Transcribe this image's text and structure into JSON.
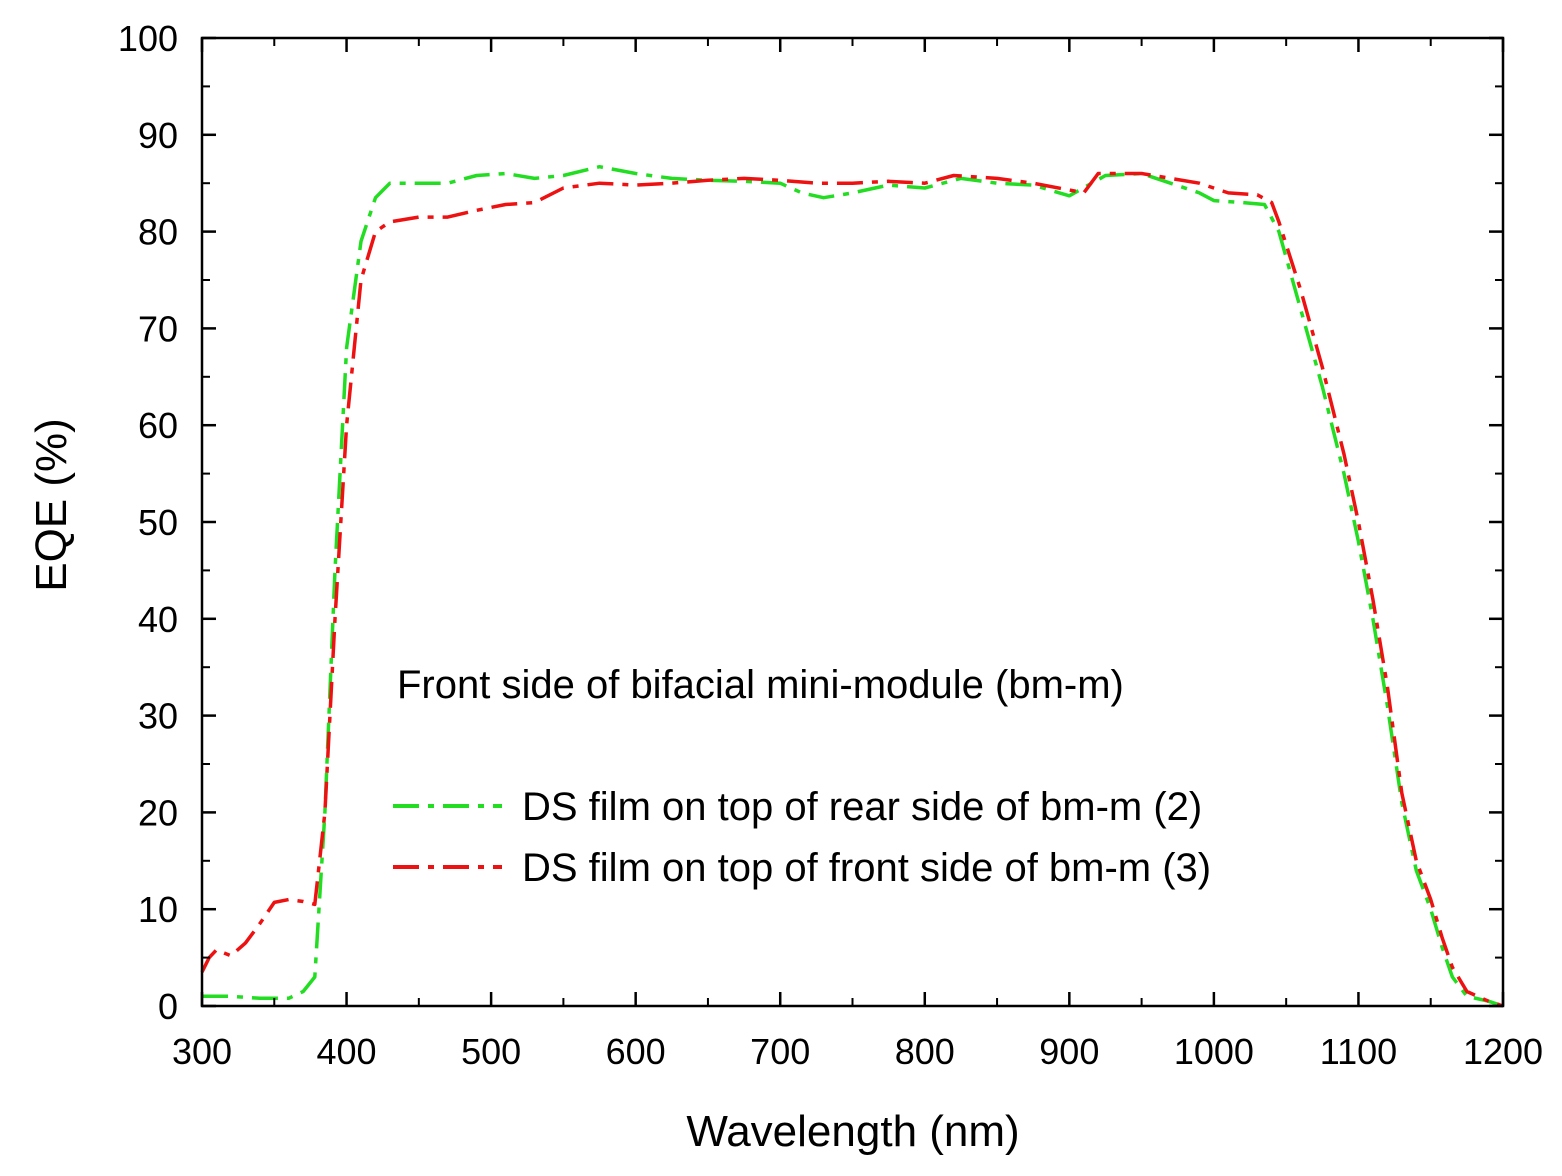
{
  "chart_data": {
    "type": "line",
    "title": "",
    "xlabel": "Wavelength (nm)",
    "ylabel": "EQE (%)",
    "xlim": [
      300,
      1200
    ],
    "ylim": [
      0,
      100
    ],
    "xticks": [
      300,
      400,
      500,
      600,
      700,
      800,
      900,
      1000,
      1100,
      1200
    ],
    "yticks": [
      0,
      10,
      20,
      30,
      40,
      50,
      60,
      70,
      80,
      90,
      100
    ],
    "grid": false,
    "legend_position": "center",
    "annotation": "Front side of bifacial mini-module (bm-m)",
    "series": [
      {
        "name": "DS film on top of rear side of bm-m (2)",
        "color": "#22dd22",
        "dash": "dash-dot",
        "points": [
          [
            300,
            1.0
          ],
          [
            320,
            1.0
          ],
          [
            340,
            0.8
          ],
          [
            360,
            0.8
          ],
          [
            370,
            1.5
          ],
          [
            378,
            3.0
          ],
          [
            385,
            20
          ],
          [
            392,
            45
          ],
          [
            400,
            68
          ],
          [
            410,
            79
          ],
          [
            420,
            83.5
          ],
          [
            430,
            85
          ],
          [
            450,
            85
          ],
          [
            470,
            85
          ],
          [
            490,
            85.8
          ],
          [
            510,
            86
          ],
          [
            530,
            85.5
          ],
          [
            550,
            85.8
          ],
          [
            575,
            86.7
          ],
          [
            600,
            86
          ],
          [
            625,
            85.5
          ],
          [
            650,
            85.3
          ],
          [
            675,
            85.2
          ],
          [
            700,
            85
          ],
          [
            715,
            84
          ],
          [
            730,
            83.5
          ],
          [
            750,
            84
          ],
          [
            775,
            84.8
          ],
          [
            800,
            84.5
          ],
          [
            825,
            85.5
          ],
          [
            850,
            85
          ],
          [
            875,
            84.8
          ],
          [
            900,
            83.7
          ],
          [
            925,
            85.8
          ],
          [
            950,
            86
          ],
          [
            970,
            85
          ],
          [
            990,
            84
          ],
          [
            1000,
            83.2
          ],
          [
            1020,
            83
          ],
          [
            1035,
            82.8
          ],
          [
            1045,
            80
          ],
          [
            1060,
            72
          ],
          [
            1075,
            64
          ],
          [
            1090,
            55
          ],
          [
            1100,
            48
          ],
          [
            1110,
            40
          ],
          [
            1120,
            31
          ],
          [
            1130,
            21
          ],
          [
            1140,
            14
          ],
          [
            1150,
            10
          ],
          [
            1158,
            6
          ],
          [
            1165,
            3
          ],
          [
            1175,
            1
          ],
          [
            1190,
            0.5
          ],
          [
            1200,
            0
          ]
        ]
      },
      {
        "name": "DS film on top of front side of bm-m (3)",
        "color": "#ee1111",
        "dash": "dash-dot",
        "points": [
          [
            300,
            3.5
          ],
          [
            305,
            5.0
          ],
          [
            310,
            5.8
          ],
          [
            320,
            5.2
          ],
          [
            330,
            6.5
          ],
          [
            340,
            8.5
          ],
          [
            350,
            10.7
          ],
          [
            360,
            11.0
          ],
          [
            370,
            10.8
          ],
          [
            378,
            10.5
          ],
          [
            385,
            20
          ],
          [
            392,
            40
          ],
          [
            400,
            60
          ],
          [
            410,
            75
          ],
          [
            420,
            80
          ],
          [
            430,
            81
          ],
          [
            450,
            81.5
          ],
          [
            470,
            81.5
          ],
          [
            490,
            82.2
          ],
          [
            510,
            82.8
          ],
          [
            530,
            83
          ],
          [
            550,
            84.5
          ],
          [
            575,
            85
          ],
          [
            600,
            84.8
          ],
          [
            625,
            85
          ],
          [
            650,
            85.3
          ],
          [
            675,
            85.5
          ],
          [
            700,
            85.3
          ],
          [
            725,
            85
          ],
          [
            750,
            85
          ],
          [
            775,
            85.2
          ],
          [
            800,
            85
          ],
          [
            820,
            85.8
          ],
          [
            850,
            85.5
          ],
          [
            875,
            85
          ],
          [
            900,
            84.3
          ],
          [
            910,
            84
          ],
          [
            920,
            86
          ],
          [
            950,
            86
          ],
          [
            970,
            85.5
          ],
          [
            990,
            85
          ],
          [
            1010,
            84
          ],
          [
            1030,
            83.8
          ],
          [
            1040,
            83
          ],
          [
            1045,
            81
          ],
          [
            1060,
            74
          ],
          [
            1075,
            66
          ],
          [
            1090,
            57
          ],
          [
            1100,
            50
          ],
          [
            1110,
            42
          ],
          [
            1120,
            33
          ],
          [
            1130,
            22
          ],
          [
            1140,
            15
          ],
          [
            1150,
            11
          ],
          [
            1158,
            7
          ],
          [
            1165,
            4
          ],
          [
            1175,
            1.5
          ],
          [
            1190,
            0.5
          ],
          [
            1200,
            0
          ]
        ]
      }
    ]
  }
}
